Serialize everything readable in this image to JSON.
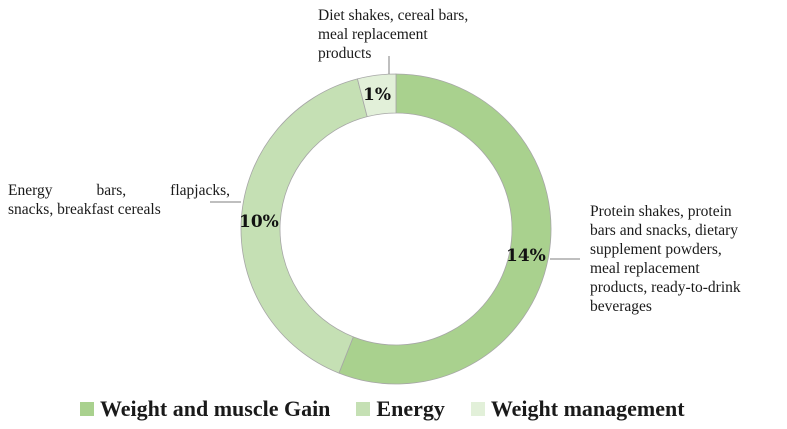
{
  "chart_data": {
    "type": "pie",
    "variant": "donut",
    "categories": [
      "Weight and muscle Gain",
      "Energy",
      "Weight management"
    ],
    "values": [
      14,
      10,
      1
    ],
    "value_labels": [
      "14%",
      "10%",
      "1%"
    ],
    "colors": [
      "#a9d18e",
      "#c5e0b4",
      "#e2f0d9"
    ],
    "category_descriptions": [
      "Protein shakes, protein bars and snacks, dietary supplement powders, meal replacement products, ready-to-drink beverages",
      "Energy bars, flapjacks, snacks, breakfast cereals",
      "Diet shakes, cereal bars, meal replacement products"
    ],
    "legend_position": "bottom",
    "title": ""
  },
  "labels": {
    "top": [
      "Diet shakes, cereal bars,",
      "meal replacement",
      "products"
    ],
    "left": [
      "Energy bars, flapjacks,",
      "snacks, breakfast cereals"
    ],
    "right": [
      "Protein shakes, protein",
      "bars and snacks, dietary",
      "supplement powders,",
      "meal replacement",
      "products, ready-to-drink",
      "beverages"
    ]
  },
  "percent_labels": {
    "gain": "14%",
    "energy": "10%",
    "management": "1%"
  },
  "legend": [
    {
      "label": "Weight and muscle Gain",
      "color": "#a9d18e"
    },
    {
      "label": "Energy",
      "color": "#c5e0b4"
    },
    {
      "label": "Weight management",
      "color": "#e2f0d9"
    }
  ]
}
